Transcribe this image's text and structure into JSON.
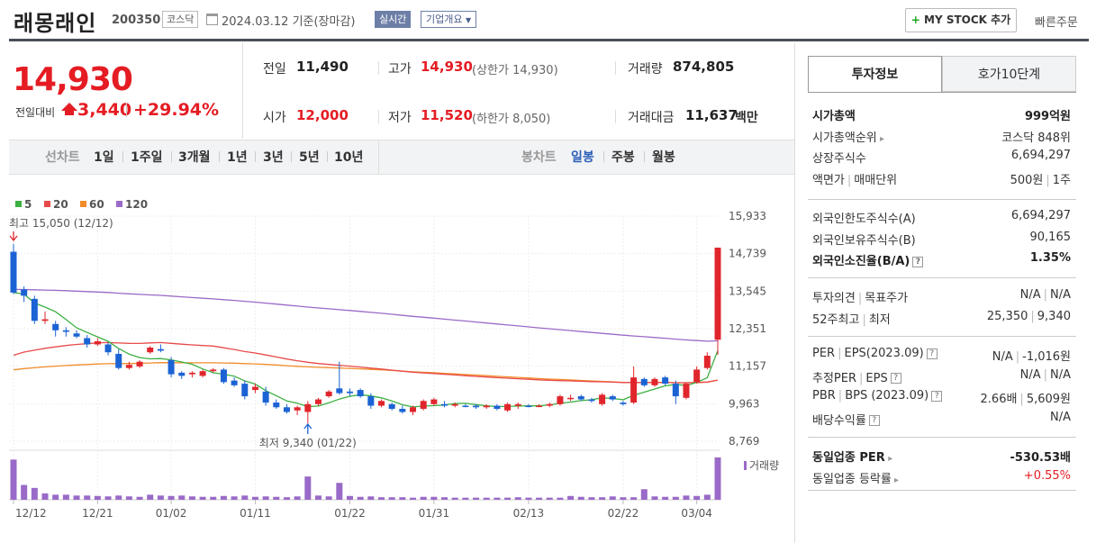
{
  "header": {
    "stock_name": "래몽래인",
    "stock_code": "200350",
    "market_tag": "코스닥",
    "date_text": "2024.03.12  기준(장마감)",
    "realtime_btn": "실시간",
    "overview_btn": "기업개요",
    "mystock_btn": "MY STOCK 추가",
    "quick_order": "빠른주문"
  },
  "price": {
    "current": "14,930",
    "change_label": "전일대비",
    "change_value": "3,440",
    "change_pct": "+29.94%"
  },
  "quote": {
    "prev_label": "전일",
    "prev_value": "11,490",
    "high_label": "고가",
    "high_value": "14,930",
    "upper_limit": "(상한가 14,930)",
    "volume_label": "거래량",
    "volume_value": "874,805",
    "open_label": "시가",
    "open_value": "12,000",
    "low_label": "저가",
    "low_value": "11,520",
    "lower_limit": "(하한가 8,050)",
    "amount_label": "거래대금",
    "amount_value": "11,637",
    "amount_unit": "백만"
  },
  "period_bar": {
    "line_label": "선차트",
    "line_periods": [
      "1일",
      "1주일",
      "3개월",
      "1년",
      "3년",
      "5년",
      "10년"
    ],
    "candle_label": "봉차트",
    "candle_periods": [
      "일봉",
      "주봉",
      "월봉"
    ],
    "active_candle": "일봉"
  },
  "chart_data": {
    "type": "candlestick",
    "legend": [
      {
        "name": "5",
        "color": "#3cb043"
      },
      {
        "name": "20",
        "color": "#e84a4a"
      },
      {
        "name": "60",
        "color": "#f08c2a"
      },
      {
        "name": "120",
        "color": "#9a6ac8"
      }
    ],
    "y_ticks": [
      "15,933",
      "14,739",
      "13,545",
      "12,351",
      "11,157",
      "9,963",
      "8,769"
    ],
    "ylim": [
      8769,
      15933
    ],
    "x_ticks": [
      "12/12",
      "12/21",
      "01/02",
      "01/11",
      "01/22",
      "01/31",
      "02/13",
      "02/22",
      "03/04"
    ],
    "high_annotation": "최고 15,050 (12/12)",
    "low_annotation": "최저 9,340 (01/22)",
    "volume_label": "거래량",
    "candles": [
      {
        "o": 14800,
        "h": 15050,
        "l": 13450,
        "c": 13500
      },
      {
        "o": 13600,
        "h": 13700,
        "l": 13200,
        "c": 13400
      },
      {
        "o": 13300,
        "h": 13400,
        "l": 12500,
        "c": 12600
      },
      {
        "o": 12600,
        "h": 12900,
        "l": 12500,
        "c": 12650
      },
      {
        "o": 12500,
        "h": 12600,
        "l": 12100,
        "c": 12300
      },
      {
        "o": 12300,
        "h": 12400,
        "l": 12100,
        "c": 12250
      },
      {
        "o": 12200,
        "h": 12300,
        "l": 12050,
        "c": 12100
      },
      {
        "o": 12050,
        "h": 12150,
        "l": 11750,
        "c": 11850
      },
      {
        "o": 11850,
        "h": 12050,
        "l": 11800,
        "c": 11950
      },
      {
        "o": 11850,
        "h": 11900,
        "l": 11500,
        "c": 11600
      },
      {
        "o": 11550,
        "h": 11700,
        "l": 11050,
        "c": 11100
      },
      {
        "o": 11100,
        "h": 11300,
        "l": 11050,
        "c": 11200
      },
      {
        "o": 11150,
        "h": 11350,
        "l": 11100,
        "c": 11300
      },
      {
        "o": 11600,
        "h": 11800,
        "l": 11550,
        "c": 11750
      },
      {
        "o": 11700,
        "h": 11850,
        "l": 11600,
        "c": 11650
      },
      {
        "o": 11350,
        "h": 11450,
        "l": 10800,
        "c": 10900
      },
      {
        "o": 10950,
        "h": 11000,
        "l": 10750,
        "c": 10850
      },
      {
        "o": 10900,
        "h": 11000,
        "l": 10800,
        "c": 10950
      },
      {
        "o": 10850,
        "h": 11050,
        "l": 10800,
        "c": 11000
      },
      {
        "o": 11000,
        "h": 11100,
        "l": 10950,
        "c": 11050
      },
      {
        "o": 11050,
        "h": 11100,
        "l": 10600,
        "c": 10650
      },
      {
        "o": 10700,
        "h": 10800,
        "l": 10500,
        "c": 10550
      },
      {
        "o": 10600,
        "h": 10700,
        "l": 10100,
        "c": 10200
      },
      {
        "o": 10400,
        "h": 10600,
        "l": 10300,
        "c": 10500
      },
      {
        "o": 10350,
        "h": 10500,
        "l": 9900,
        "c": 10000
      },
      {
        "o": 10000,
        "h": 10100,
        "l": 9800,
        "c": 9850
      },
      {
        "o": 9850,
        "h": 9950,
        "l": 9650,
        "c": 9700
      },
      {
        "o": 9750,
        "h": 9900,
        "l": 9600,
        "c": 9850
      },
      {
        "o": 9700,
        "h": 10050,
        "l": 9340,
        "c": 9950
      },
      {
        "o": 9950,
        "h": 10150,
        "l": 9900,
        "c": 10100
      },
      {
        "o": 10200,
        "h": 10400,
        "l": 10150,
        "c": 10350
      },
      {
        "o": 10450,
        "h": 11300,
        "l": 10250,
        "c": 10300
      },
      {
        "o": 10350,
        "h": 10450,
        "l": 10200,
        "c": 10300
      },
      {
        "o": 10400,
        "h": 10450,
        "l": 10150,
        "c": 10200
      },
      {
        "o": 10200,
        "h": 10300,
        "l": 9800,
        "c": 9900
      },
      {
        "o": 9900,
        "h": 10100,
        "l": 9850,
        "c": 10050
      },
      {
        "o": 9950,
        "h": 10000,
        "l": 9750,
        "c": 9800
      },
      {
        "o": 9800,
        "h": 9900,
        "l": 9650,
        "c": 9700
      },
      {
        "o": 9700,
        "h": 9900,
        "l": 9600,
        "c": 9850
      },
      {
        "o": 9800,
        "h": 10100,
        "l": 9750,
        "c": 10050
      },
      {
        "o": 9950,
        "h": 10150,
        "l": 9900,
        "c": 10100
      },
      {
        "o": 9950,
        "h": 10050,
        "l": 9850,
        "c": 9900
      },
      {
        "o": 9900,
        "h": 10000,
        "l": 9850,
        "c": 9950
      },
      {
        "o": 9900,
        "h": 9950,
        "l": 9850,
        "c": 9880
      },
      {
        "o": 9900,
        "h": 9950,
        "l": 9800,
        "c": 9850
      },
      {
        "o": 9850,
        "h": 9950,
        "l": 9800,
        "c": 9900
      },
      {
        "o": 9900,
        "h": 9950,
        "l": 9750,
        "c": 9800
      },
      {
        "o": 9750,
        "h": 10000,
        "l": 9700,
        "c": 9950
      },
      {
        "o": 9900,
        "h": 10000,
        "l": 9800,
        "c": 9950
      },
      {
        "o": 9900,
        "h": 9950,
        "l": 9850,
        "c": 9880
      },
      {
        "o": 9880,
        "h": 9950,
        "l": 9850,
        "c": 9900
      },
      {
        "o": 9900,
        "h": 10000,
        "l": 9850,
        "c": 9950
      },
      {
        "o": 9950,
        "h": 10250,
        "l": 9900,
        "c": 10200
      },
      {
        "o": 10150,
        "h": 10250,
        "l": 10050,
        "c": 10150
      },
      {
        "o": 10200,
        "h": 10250,
        "l": 10050,
        "c": 10100
      },
      {
        "o": 10100,
        "h": 10150,
        "l": 10000,
        "c": 10050
      },
      {
        "o": 9950,
        "h": 10300,
        "l": 9900,
        "c": 10250
      },
      {
        "o": 10200,
        "h": 10250,
        "l": 10050,
        "c": 10100
      },
      {
        "o": 10000,
        "h": 10050,
        "l": 9900,
        "c": 9950
      },
      {
        "o": 10000,
        "h": 11150,
        "l": 9950,
        "c": 10800
      },
      {
        "o": 10750,
        "h": 10800,
        "l": 10500,
        "c": 10550
      },
      {
        "o": 10550,
        "h": 10800,
        "l": 10500,
        "c": 10750
      },
      {
        "o": 10800,
        "h": 10850,
        "l": 10550,
        "c": 10600
      },
      {
        "o": 10600,
        "h": 10700,
        "l": 9950,
        "c": 10200
      },
      {
        "o": 10150,
        "h": 10650,
        "l": 10100,
        "c": 10600
      },
      {
        "o": 10650,
        "h": 11150,
        "l": 10600,
        "c": 11050
      },
      {
        "o": 11100,
        "h": 11600,
        "l": 11050,
        "c": 11490
      },
      {
        "o": 12000,
        "h": 14930,
        "l": 11520,
        "c": 14930
      }
    ],
    "volumes": [
      0.95,
      0.35,
      0.28,
      0.15,
      0.12,
      0.12,
      0.1,
      0.1,
      0.09,
      0.08,
      0.1,
      0.08,
      0.07,
      0.12,
      0.1,
      0.09,
      0.1,
      0.08,
      0.07,
      0.07,
      0.09,
      0.08,
      0.1,
      0.07,
      0.08,
      0.07,
      0.06,
      0.08,
      0.55,
      0.1,
      0.08,
      0.4,
      0.09,
      0.07,
      0.08,
      0.06,
      0.06,
      0.06,
      0.05,
      0.07,
      0.07,
      0.06,
      0.05,
      0.05,
      0.05,
      0.05,
      0.05,
      0.05,
      0.06,
      0.05,
      0.05,
      0.05,
      0.05,
      0.09,
      0.07,
      0.06,
      0.06,
      0.08,
      0.06,
      0.06,
      0.25,
      0.08,
      0.07,
      0.07,
      0.1,
      0.09,
      0.12,
      1.0
    ]
  },
  "invest": {
    "tab_active": "투자정보",
    "tab_other": "호가10단계",
    "rows1": [
      {
        "label": "시가총액",
        "value": "999억원",
        "bold": true
      },
      {
        "label": "시가총액순위",
        "value": "코스닥 848위",
        "arrow": true
      },
      {
        "label": "상장주식수",
        "value": "6,694,297"
      },
      {
        "label": "액면가",
        "label2": "매매단위",
        "value": "500원",
        "value2": "1주"
      }
    ],
    "rows2": [
      {
        "label": "외국인한도주식수(A)",
        "value": "6,694,297"
      },
      {
        "label": "외국인보유주식수(B)",
        "value": "90,165"
      },
      {
        "label": "외국인소진율(B/A)",
        "value": "1.35%",
        "bold": true,
        "q": true
      }
    ],
    "rows3": [
      {
        "label": "투자의견",
        "label2": "목표주가",
        "value": "N/A",
        "value2": "N/A"
      },
      {
        "label": "52주최고",
        "label2": "최저",
        "value": "25,350",
        "value2": "9,340"
      }
    ],
    "rows4": [
      {
        "label": "PER",
        "label2": "EPS(2023.09)",
        "value": "N/A",
        "value2": "-1,016원",
        "q": true
      },
      {
        "label": "추정PER",
        "label2": "EPS",
        "value": "N/A",
        "value2": "N/A",
        "q": true
      },
      {
        "label": "PBR",
        "label2": "BPS (2023.09)",
        "value": "2.66배",
        "value2": "5,609원",
        "q": true
      },
      {
        "label": "배당수익률",
        "value": "N/A",
        "q": true
      }
    ],
    "rows5": [
      {
        "label": "동일업종 PER",
        "value": "-530.53배",
        "bold": true,
        "arrow": true
      },
      {
        "label": "동일업종 등락률",
        "value": "+0.55%",
        "arrow": true,
        "red": true
      }
    ]
  }
}
